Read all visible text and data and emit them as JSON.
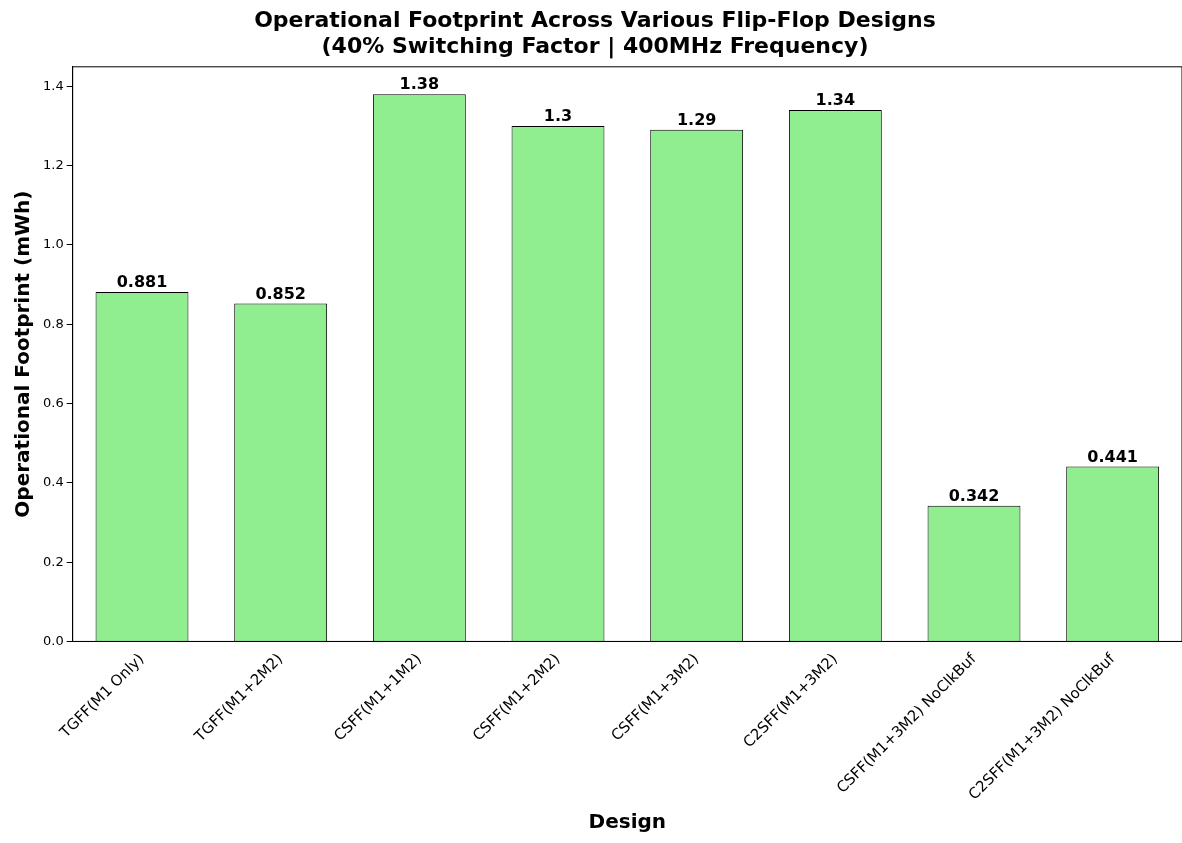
{
  "chart_data": {
    "type": "bar",
    "title": "Operational Footprint Across Various Flip-Flop Designs\n(40% Switching Factor | 400MHz Frequency)",
    "xlabel": "Design",
    "ylabel": "Operational Footprint (mWh)",
    "categories": [
      "TGFF(M1 Only)",
      "TGFF(M1+2M2)",
      "CSFF(M1+1M2)",
      "CSFF(M1+2M2)",
      "CSFF(M1+3M2)",
      "C2SFF(M1+3M2)",
      "CSFF(M1+3M2) NoClkBuf",
      "C2SFF(M1+3M2) NoClkBuf"
    ],
    "values": [
      0.881,
      0.852,
      1.38,
      1.3,
      1.29,
      1.34,
      0.342,
      0.441
    ],
    "color": "#90ee90",
    "ylim": [
      0,
      1.449
    ],
    "yticks": [
      {
        "value": 0,
        "label": "0.0"
      },
      0.2,
      0.4,
      0.6,
      0.8,
      {
        "value": 1,
        "label": "1.0"
      },
      1.2,
      1.4
    ],
    "grid": false,
    "legend": false,
    "data_labels": true
  }
}
